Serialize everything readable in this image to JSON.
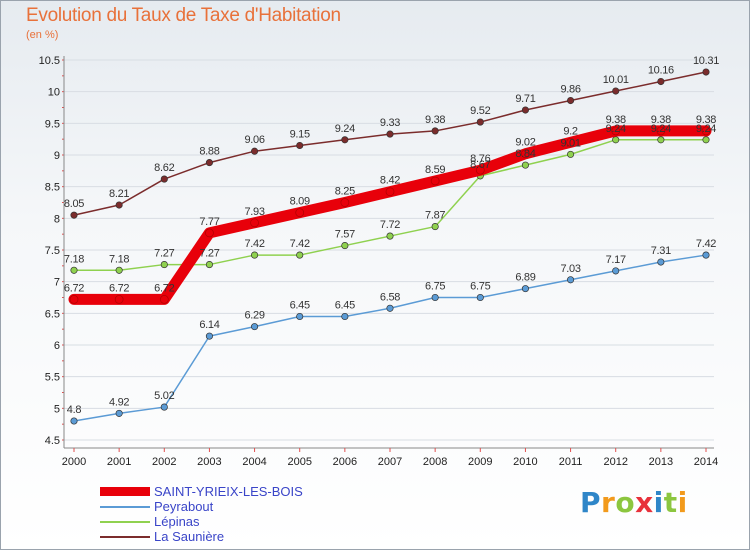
{
  "title": "Evolution du Taux de Taxe d'Habitation",
  "unit_label": "(en %)",
  "brand": {
    "text": "Proxiti",
    "letters": [
      "P",
      "r",
      "o",
      "x",
      "i",
      "t",
      "i"
    ],
    "letter_colors": [
      "#2f86c8",
      "#f29a1c",
      "#8cc63f",
      "#e8313b",
      "#2f86c8",
      "#8cc63f",
      "#f29a1c"
    ]
  },
  "chart_data": {
    "type": "line",
    "title": "Evolution du Taux de Taxe d'Habitation",
    "ylabel": "(en %)",
    "xlabel": "",
    "x": [
      2000,
      2001,
      2002,
      2003,
      2004,
      2005,
      2006,
      2007,
      2008,
      2009,
      2010,
      2011,
      2012,
      2013,
      2014
    ],
    "ylim": [
      4.5,
      10.5
    ],
    "yticks": [
      4.5,
      5,
      5.5,
      6,
      6.5,
      7,
      7.5,
      8,
      8.5,
      9,
      9.5,
      10,
      10.5
    ],
    "grid": "horizontal",
    "legend_position": "bottom-left",
    "series": [
      {
        "name": "SAINT-YRIEIX-LES-BOIS",
        "color": "#e8000a",
        "values": [
          6.72,
          6.72,
          6.72,
          7.77,
          7.93,
          8.09,
          8.25,
          8.42,
          8.59,
          8.76,
          9.02,
          9.2,
          9.38,
          9.38,
          9.38
        ],
        "labels": [
          "6.72",
          "6.72",
          "6.72",
          "7.77",
          "7.93",
          "8.09",
          "8.25",
          "8.42",
          "8.59",
          "8.76",
          "9.02",
          "9.2",
          "9.38",
          "9.38",
          "9.38"
        ]
      },
      {
        "name": "Peyrabout",
        "color": "#5b9bd5",
        "values": [
          4.8,
          4.92,
          5.02,
          6.14,
          6.29,
          6.45,
          6.45,
          6.58,
          6.75,
          6.75,
          6.89,
          7.03,
          7.17,
          7.31,
          7.42
        ],
        "labels": [
          "4.8",
          "4.92",
          "5.02",
          "6.14",
          "6.29",
          "6.45",
          "6.45",
          "6.58",
          "6.75",
          "6.75",
          "6.89",
          "7.03",
          "7.17",
          "7.31",
          "7.42"
        ]
      },
      {
        "name": "Lépinas",
        "color": "#8fd14f",
        "values": [
          7.18,
          7.18,
          7.27,
          7.27,
          7.42,
          7.42,
          7.57,
          7.72,
          7.87,
          8.67,
          8.84,
          9.01,
          9.24,
          9.24,
          9.24
        ],
        "labels": [
          "7.18",
          "7.18",
          "7.27",
          "7.27",
          "7.42",
          "7.42",
          "7.57",
          "7.72",
          "7.87",
          "8.67",
          "8.84",
          "9.01",
          "9.24",
          "9.24",
          "9.24"
        ]
      },
      {
        "name": "La Saunière",
        "color": "#7b2c2c",
        "values": [
          8.05,
          8.21,
          8.62,
          8.88,
          9.06,
          9.15,
          9.24,
          9.33,
          9.38,
          9.52,
          9.71,
          9.86,
          10.01,
          10.16,
          10.31
        ],
        "labels": [
          "8.05",
          "8.21",
          "8.62",
          "8.88",
          "9.06",
          "9.15",
          "9.24",
          "9.33",
          "9.38",
          "9.52",
          "9.71",
          "9.86",
          "10.01",
          "10.16",
          "10.31"
        ]
      }
    ]
  }
}
